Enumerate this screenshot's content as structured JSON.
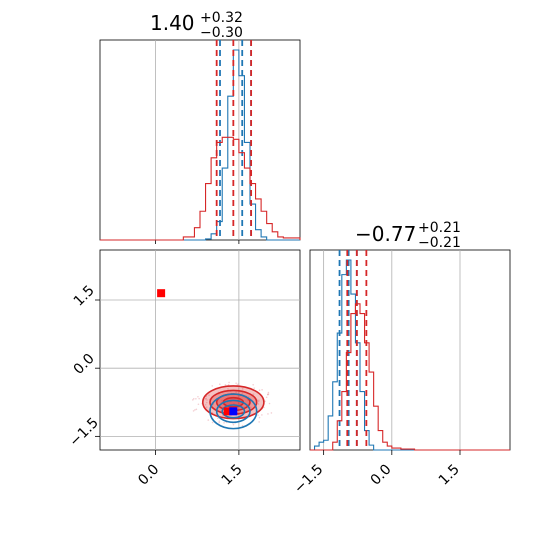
{
  "chart_data": [
    {
      "type": "histogram",
      "panel": "top-left",
      "title_main": "1.40",
      "title_sup": "+0.32",
      "title_sub": "−0.30",
      "xlim": [
        -1.0,
        2.6
      ],
      "grid": true,
      "series": [
        {
          "color": "#1f77b4",
          "bins": [
            0.9,
            1.0,
            1.1,
            1.2,
            1.3,
            1.4,
            1.5,
            1.6,
            1.7,
            1.8,
            1.9,
            2.0
          ],
          "counts": [
            1,
            6,
            18,
            70,
            140,
            185,
            160,
            95,
            35,
            10,
            3
          ],
          "quantile_lines": [
            1.16,
            1.56,
            1.72
          ]
        },
        {
          "color": "#d62728",
          "bins": [
            0.5,
            0.7,
            0.8,
            0.9,
            1.0,
            1.1,
            1.2,
            1.3,
            1.4,
            1.5,
            1.6,
            1.7,
            1.8,
            1.9,
            2.0,
            2.1,
            2.2,
            2.3,
            2.6
          ],
          "counts": [
            3,
            12,
            28,
            55,
            80,
            95,
            100,
            100,
            98,
            85,
            70,
            55,
            40,
            28,
            16,
            8,
            3,
            2
          ],
          "quantile_lines": [
            1.1,
            1.4,
            1.72
          ]
        }
      ]
    },
    {
      "type": "scatter",
      "panel": "bottom-left",
      "xlim": [
        -1.0,
        2.6
      ],
      "ylim": [
        -1.8,
        2.6
      ],
      "xticks": [
        "0.0",
        "1.5"
      ],
      "yticks": [
        "−1.5",
        "0.0",
        "1.5"
      ],
      "xtick_values": [
        0.0,
        1.5
      ],
      "ytick_values": [
        -1.5,
        0.0,
        1.5
      ],
      "grid": true,
      "contours": [
        {
          "color": "#d62728",
          "center": [
            1.4,
            -0.75
          ],
          "levels": [
            [
              0.55,
              0.36
            ],
            [
              0.42,
              0.26
            ],
            [
              0.3,
              0.18
            ],
            [
              0.18,
              0.1
            ]
          ]
        },
        {
          "color": "#1f77b4",
          "center": [
            1.4,
            -0.95
          ],
          "levels": [
            [
              0.42,
              0.38
            ],
            [
              0.3,
              0.24
            ],
            [
              0.2,
              0.14
            ]
          ]
        }
      ],
      "markers": [
        {
          "color": "#ff0000",
          "shape": "square",
          "x": 0.1,
          "y": 1.65
        },
        {
          "color": "#ff0000",
          "shape": "square",
          "x": 1.3,
          "y": -0.95
        },
        {
          "color": "#0000ff",
          "shape": "square",
          "x": 1.4,
          "y": -0.95
        }
      ]
    },
    {
      "type": "histogram",
      "panel": "bottom-right",
      "title_main": "−0.77",
      "title_sup": "+0.21",
      "title_sub": "−0.21",
      "xlim": [
        -1.8,
        2.6
      ],
      "xticks": [
        "−1.5",
        "0.0",
        "1.5"
      ],
      "xtick_values": [
        -1.5,
        0.0,
        1.5
      ],
      "grid": true,
      "series": [
        {
          "color": "#1f77b4",
          "bins": [
            -1.7,
            -1.6,
            -1.5,
            -1.4,
            -1.3,
            -1.2,
            -1.1,
            -1.0,
            -0.9,
            -0.8,
            -0.7,
            -0.6,
            -0.5,
            -0.4
          ],
          "counts": [
            4,
            8,
            10,
            35,
            70,
            120,
            180,
            195,
            160,
            110,
            60,
            20,
            5
          ],
          "quantile_lines": [
            -1.15,
            -0.95,
            -0.77
          ]
        },
        {
          "color": "#d62728",
          "bins": [
            -1.3,
            -1.2,
            -1.1,
            -1.0,
            -0.9,
            -0.8,
            -0.7,
            -0.6,
            -0.5,
            -0.4,
            -0.3,
            -0.2,
            -0.1,
            0.0,
            0.2,
            0.5
          ],
          "counts": [
            8,
            30,
            60,
            100,
            140,
            150,
            140,
            110,
            80,
            45,
            20,
            8,
            4,
            2,
            1
          ],
          "quantile_lines": [
            -0.98,
            -0.77,
            -0.56
          ]
        }
      ]
    }
  ]
}
